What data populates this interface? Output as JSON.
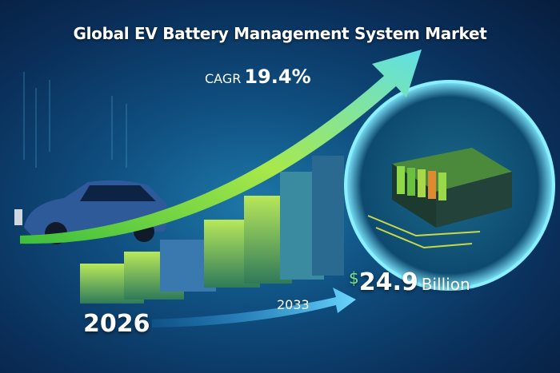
{
  "title": "Global EV Battery Management System Market",
  "cagr": {
    "label": "CAGR",
    "value": "19.4%"
  },
  "market_value": {
    "currency": "$",
    "amount": "24.9",
    "unit": "Billion"
  },
  "years": {
    "start": "2026",
    "end": "2033"
  },
  "colors": {
    "accent_green": "#8fe04a",
    "arrow_cyan": "#5fe0e8",
    "background": "#0f4f80"
  }
}
